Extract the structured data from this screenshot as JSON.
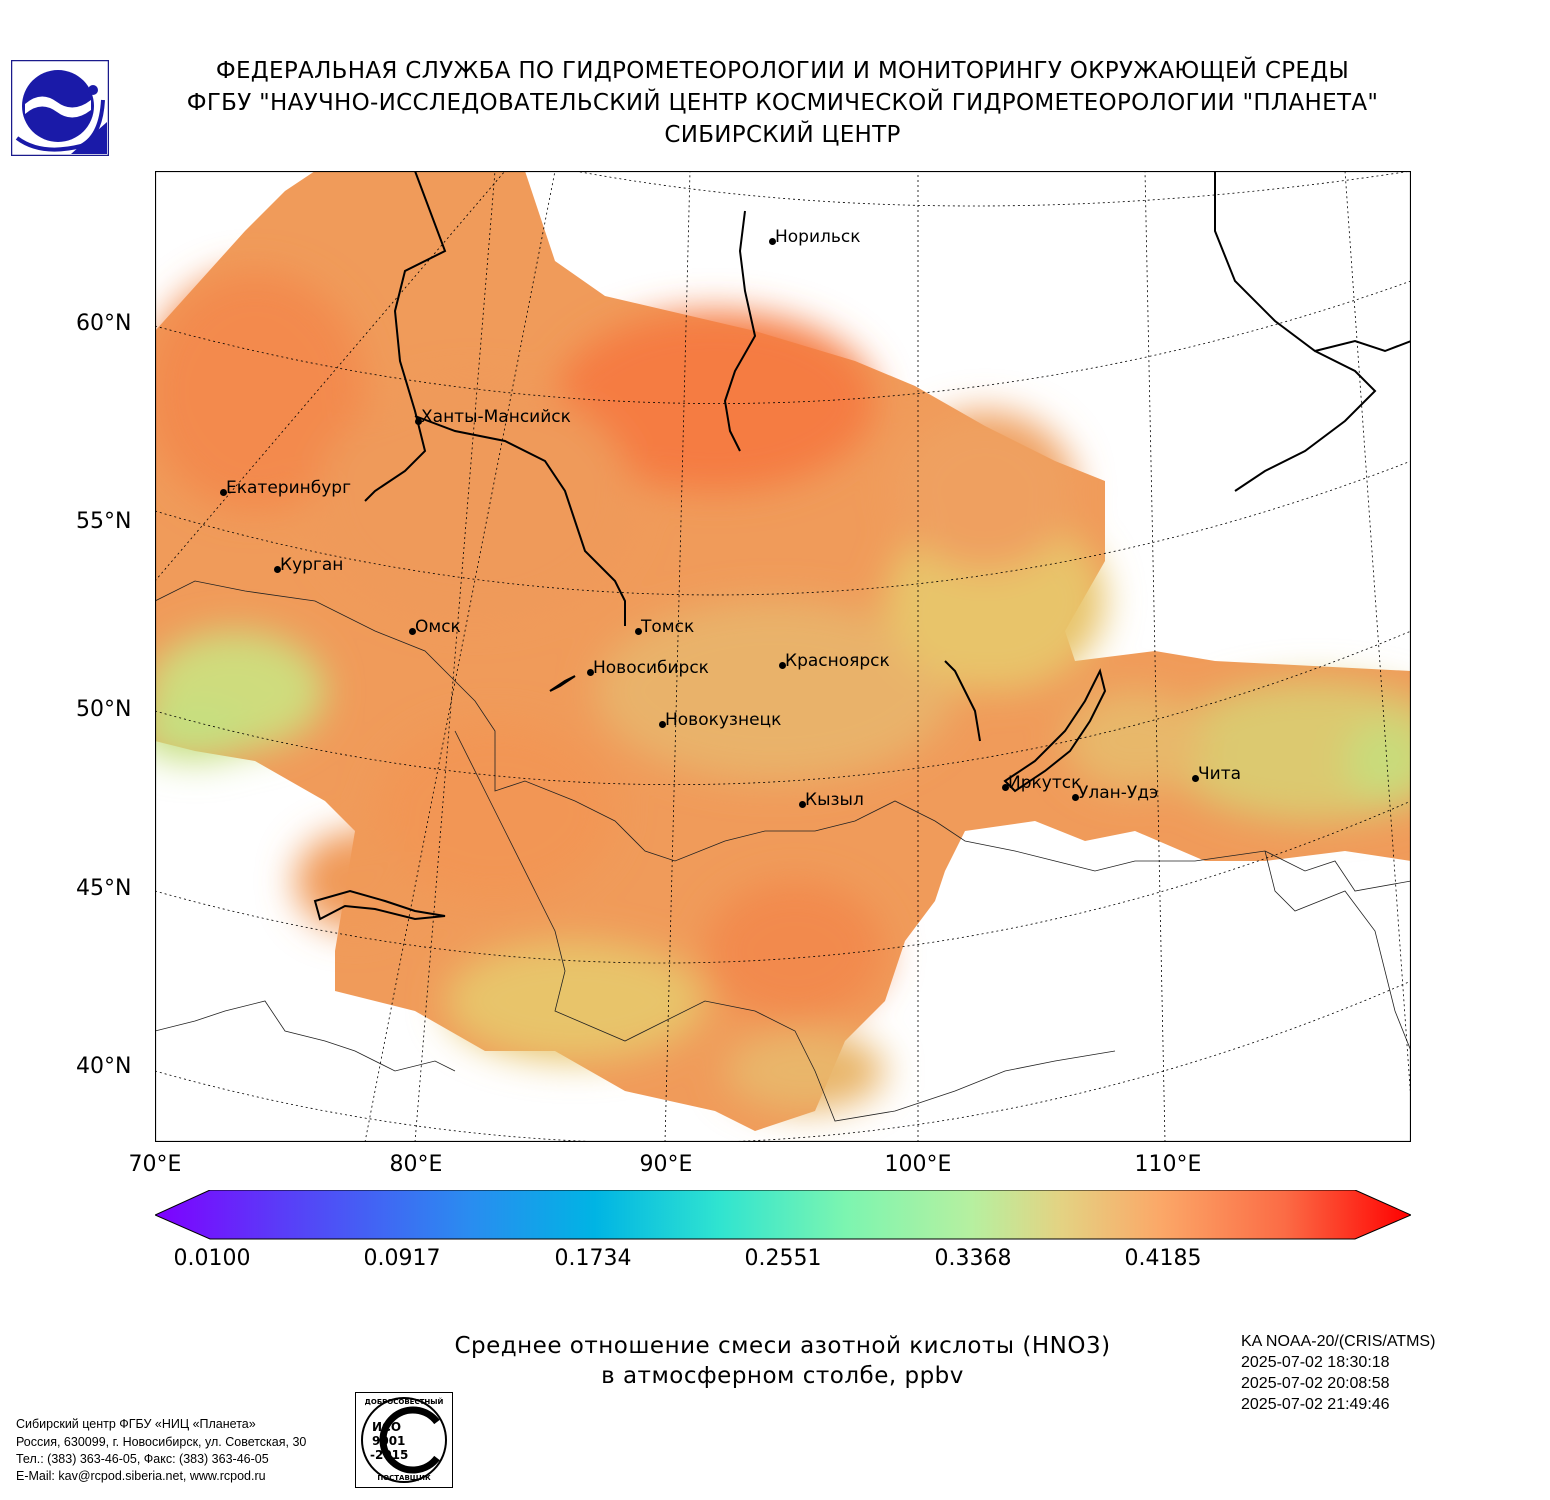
{
  "header": {
    "line1": "ФЕДЕРАЛЬНАЯ СЛУЖБА ПО ГИДРОМЕТЕОРОЛОГИИ И МОНИТОРИНГУ ОКРУЖАЮЩЕЙ СРЕДЫ",
    "line2": "ФГБУ \"НАУЧНО-ИССЛЕДОВАТЕЛЬСКИЙ ЦЕНТР КОСМИЧЕСКОЙ ГИДРОМЕТЕОРОЛОГИИ \"ПЛАНЕТА\"",
    "line3": "СИБИРСКИЙ ЦЕНТР"
  },
  "map": {
    "lat_labels": [
      "60°N",
      "55°N",
      "50°N",
      "45°N",
      "40°N"
    ],
    "lon_labels": [
      "70°E",
      "80°E",
      "90°E",
      "100°E",
      "110°E"
    ],
    "cities": {
      "norilsk": "Норильск",
      "khanty": "Ханты-Мансийск",
      "ekaterinburg": "Екатеринбург",
      "kurgan": "Курган",
      "omsk": "Омск",
      "tomsk": "Томск",
      "novosibirsk": "Новосибирск",
      "krasnoyarsk": "Красноярск",
      "novokuznetsk": "Новокузнецк",
      "kyzyl": "Кызыл",
      "irkutsk": "Иркутск",
      "ulanude": "Улан-Удэ",
      "chita": "Чита"
    },
    "field_colors": {
      "low": "#c9df7d",
      "mid": "#e8c46a",
      "high": "#f5985a",
      "max": "#f4793f"
    }
  },
  "colorbar": {
    "ticks": [
      "0.0100",
      "0.0917",
      "0.1734",
      "0.2551",
      "0.3368",
      "0.4185"
    ],
    "min": 0.01,
    "max": 0.5
  },
  "caption": {
    "line1": "Среднее отношение смеси азотной кислоты (HNO3)",
    "line2": "в атмосферном столбе, ppbv"
  },
  "satellite": {
    "name": "KA NOAA-20/(CRIS/ATMS)",
    "t1": "2025-07-02 18:30:18",
    "t2": "2025-07-02 20:08:58",
    "t3": "2025-07-02 21:49:46"
  },
  "footer": {
    "line1": "Сибирский центр ФГБУ «НИЦ «Планета»",
    "line2": "Россия, 630099, г. Новосибирск, ул. Советская, 30",
    "line3": "Тел.: (383) 363-46-05, Факс: (383) 363-46-05",
    "line4": "E-Mail: kav@rcpod.siberia.net, www.rcpod.ru"
  },
  "iso_badge": {
    "top": "ДОБРОСОВЕСТНЫЙ",
    "iso": "ИСО",
    "num": "9001",
    "year": "-2015",
    "bottom": "ПОСТАВЩИК"
  }
}
